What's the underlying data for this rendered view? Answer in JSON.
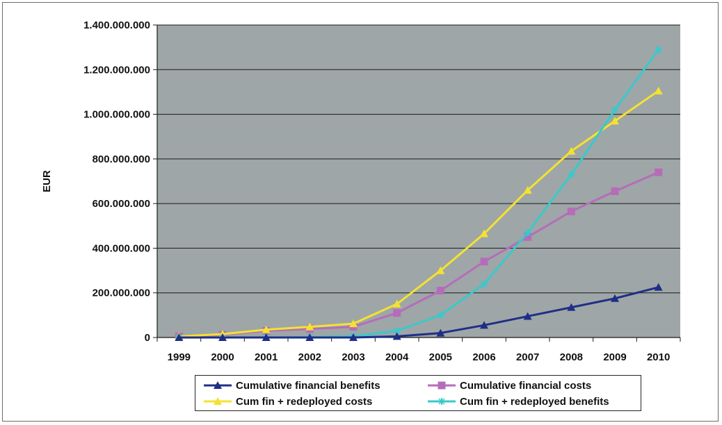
{
  "chart_data": {
    "type": "line",
    "title": "",
    "xlabel": "",
    "ylabel": "EUR",
    "x": [
      "1999",
      "2000",
      "2001",
      "2002",
      "2003",
      "2004",
      "2005",
      "2006",
      "2007",
      "2008",
      "2009",
      "2010"
    ],
    "y_ticks": [
      "0",
      "200.000.000",
      "400.000.000",
      "600.000.000",
      "800.000.000",
      "1.000.000.000",
      "1.200.000.000",
      "1.400.000.000"
    ],
    "ylim": [
      0,
      1400000000
    ],
    "grid": "horizontal",
    "plot_background": "#9fa6a7",
    "legend_position": "bottom",
    "series": [
      {
        "name": "Cumulative financial benefits",
        "color": "#1f2f86",
        "marker": "triangle",
        "values": [
          0,
          0,
          0,
          0,
          0,
          5000000,
          20000000,
          55000000,
          95000000,
          135000000,
          175000000,
          225000000
        ]
      },
      {
        "name": "Cumulative financial costs",
        "color": "#b56db9",
        "marker": "square",
        "values": [
          5000000,
          12000000,
          30000000,
          38000000,
          48000000,
          110000000,
          210000000,
          340000000,
          450000000,
          565000000,
          655000000,
          740000000
        ]
      },
      {
        "name": "Cum fin + redeployed costs",
        "color": "#f4e231",
        "marker": "triangle",
        "values": [
          5000000,
          15000000,
          35000000,
          48000000,
          62000000,
          150000000,
          300000000,
          465000000,
          660000000,
          835000000,
          970000000,
          1105000000
        ]
      },
      {
        "name": "Cum fin + redeployed benefits",
        "color": "#39c9cb",
        "marker": "star",
        "values": [
          0,
          0,
          0,
          2000000,
          5000000,
          30000000,
          100000000,
          240000000,
          470000000,
          730000000,
          1020000000,
          1290000000
        ]
      }
    ]
  },
  "legend": {
    "items": [
      {
        "label": "Cumulative financial benefits",
        "color": "#1f2f86",
        "marker": "triangle"
      },
      {
        "label": "Cumulative financial costs",
        "color": "#b56db9",
        "marker": "square"
      },
      {
        "label": "Cum fin + redeployed costs",
        "color": "#f4e231",
        "marker": "triangle"
      },
      {
        "label": "Cum fin + redeployed benefits",
        "color": "#39c9cb",
        "marker": "star"
      }
    ]
  }
}
